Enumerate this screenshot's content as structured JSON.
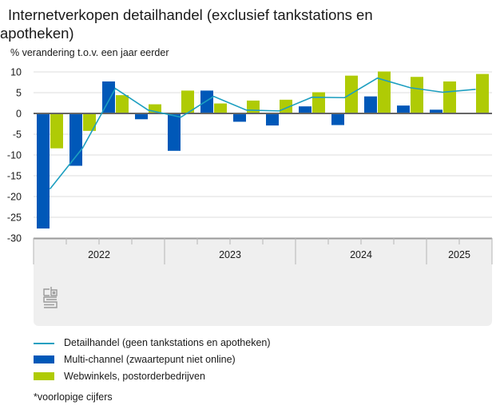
{
  "title_line1": "Internetverkopen detailhandel (exclusief tankstations en",
  "title_line2": "apotheken)",
  "subtitle": "% verandering t.o.v. een jaar eerder",
  "footnote": "*voorlopige cijfers",
  "logo": "cbs-logo",
  "colors": {
    "multichannel": "#0058b8",
    "webwinkels": "#afcb05",
    "detailhandel": "#1d9fc0",
    "gridline": "#dcdcdc",
    "zero_line": "#666666",
    "axis_panel": "#efefef"
  },
  "chart_data": {
    "type": "bar",
    "title": "Internetverkopen detailhandel (exclusief tankstations en apotheken)",
    "ylabel": "% verandering t.o.v. een jaar eerder",
    "xlabel": "",
    "ylim": [
      -30,
      10
    ],
    "yticks": [
      10,
      5,
      0,
      -5,
      -10,
      -15,
      -20,
      -25,
      -30
    ],
    "grid": true,
    "legend_position": "bottom",
    "categories": [
      "2022 Q1",
      "2022 Q2",
      "2022 Q3",
      "2022 Q4",
      "2023 Q1",
      "2023 Q2",
      "2023 Q3",
      "2023 Q4",
      "2024 Q1",
      "2024 Q2",
      "2024 Q3",
      "2024 Q4",
      "2025 Q1",
      "2025 Q2"
    ],
    "year_groups": [
      {
        "label": "2022",
        "count": 4
      },
      {
        "label": "2023",
        "count": 4
      },
      {
        "label": "2024",
        "count": 4
      },
      {
        "label": "2025",
        "count": 2
      }
    ],
    "series": [
      {
        "name": "Multi-channel (zwaartepunt niet online)",
        "type": "bar",
        "color": "#0058b8",
        "values": [
          -27.7,
          -12.6,
          7.7,
          -1.4,
          -9.0,
          5.5,
          -2.0,
          -2.9,
          1.7,
          -2.8,
          4.1,
          1.9,
          0.9,
          null
        ]
      },
      {
        "name": "Webwinkels, postorderbedrijven",
        "type": "bar",
        "color": "#afcb05",
        "values": [
          -8.4,
          -4.2,
          4.4,
          2.2,
          5.5,
          2.4,
          3.1,
          3.3,
          5.1,
          9.1,
          10.1,
          8.8,
          7.7,
          9.5
        ]
      },
      {
        "name": "Detailhandel (geen tankstations en apotheken)",
        "type": "line",
        "color": "#1d9fc0",
        "values": [
          -18.2,
          -8.3,
          6.0,
          0.8,
          -0.9,
          4.1,
          0.8,
          0.6,
          3.9,
          3.8,
          8.5,
          6.2,
          5.1,
          5.8
        ]
      }
    ]
  },
  "legend": [
    {
      "label": "Detailhandel (geen tankstations en apotheken)",
      "kind": "line",
      "color": "#1d9fc0"
    },
    {
      "label": "Multi-channel (zwaartepunt niet online)",
      "kind": "box",
      "color": "#0058b8"
    },
    {
      "label": "Webwinkels, postorderbedrijven",
      "kind": "box",
      "color": "#afcb05"
    }
  ]
}
